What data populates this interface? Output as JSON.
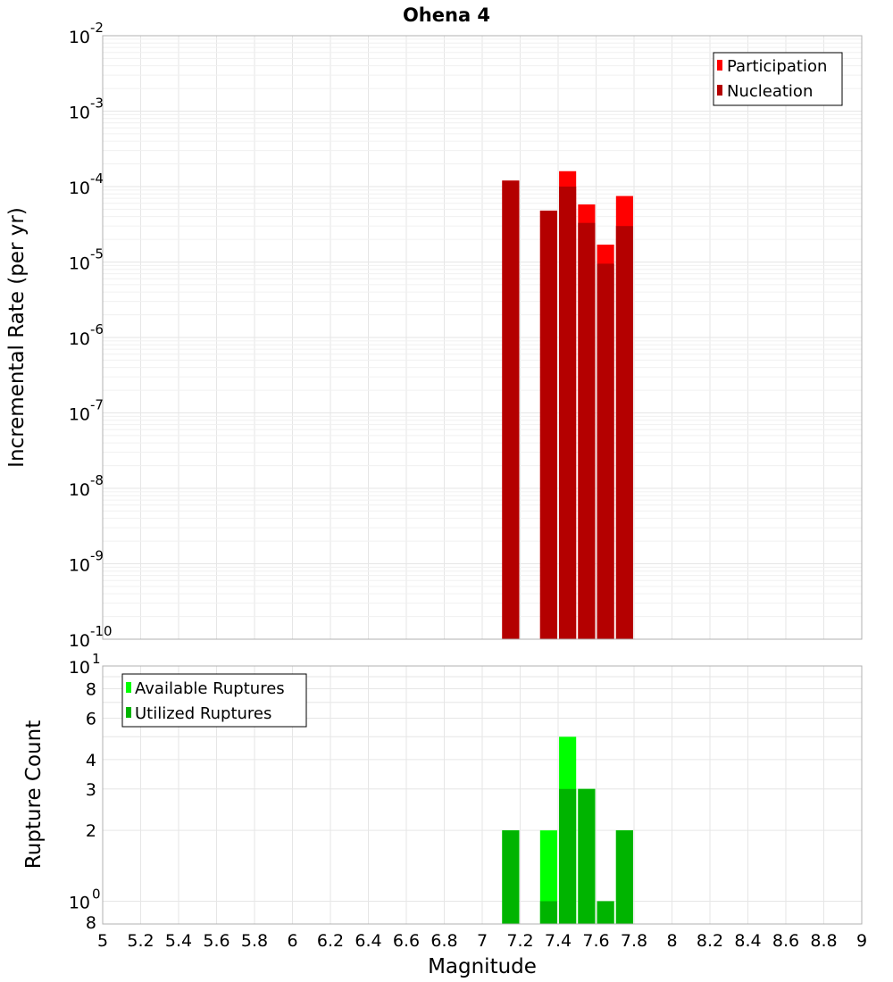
{
  "title": "Ohena 4",
  "x_axis": {
    "label": "Magnitude",
    "ticks": [
      "5",
      "5.2",
      "5.4",
      "5.6",
      "5.8",
      "6",
      "6.2",
      "6.4",
      "6.6",
      "6.8",
      "7",
      "7.2",
      "7.4",
      "7.6",
      "7.8",
      "8",
      "8.2",
      "8.4",
      "8.6",
      "8.8",
      "9"
    ]
  },
  "top_plot": {
    "ylabel": "Incremental Rate (per yr)",
    "decade_labels": [
      {
        "base": "10",
        "exp": "-10"
      },
      {
        "base": "10",
        "exp": "-9"
      },
      {
        "base": "10",
        "exp": "-8"
      },
      {
        "base": "10",
        "exp": "-7"
      },
      {
        "base": "10",
        "exp": "-6"
      },
      {
        "base": "10",
        "exp": "-5"
      },
      {
        "base": "10",
        "exp": "-4"
      },
      {
        "base": "10",
        "exp": "-3"
      },
      {
        "base": "10",
        "exp": "-2"
      }
    ],
    "legend": [
      "Participation",
      "Nucleation"
    ],
    "colors": {
      "participation": "#ff0000",
      "nucleation": "#b40000"
    }
  },
  "bottom_plot": {
    "ylabel": "Rupture Count",
    "tick_labels": [
      "8",
      "2",
      "3",
      "4",
      "6",
      "8"
    ],
    "decade_labels": [
      {
        "base": "10",
        "exp": "0"
      },
      {
        "base": "10",
        "exp": "1"
      }
    ],
    "legend": [
      "Available Ruptures",
      "Utilized Ruptures"
    ],
    "colors": {
      "available": "#00ff00",
      "utilized": "#00b400"
    }
  },
  "chart_data": [
    {
      "type": "bar",
      "title": "Ohena 4",
      "xlabel": "Magnitude",
      "ylabel": "Incremental Rate (per yr)",
      "y_scale": "log",
      "xlim": [
        5,
        9
      ],
      "ylim": [
        1e-10,
        0.01
      ],
      "x": [
        7.15,
        7.35,
        7.45,
        7.55,
        7.65,
        7.75
      ],
      "series": [
        {
          "name": "Participation",
          "values": [
            0.00012,
            4.8e-05,
            0.00016,
            5.8e-05,
            1.7e-05,
            7.5e-05
          ]
        },
        {
          "name": "Nucleation",
          "values": [
            0.00012,
            4.8e-05,
            0.0001,
            3.3e-05,
            9.5e-06,
            3e-05
          ]
        }
      ],
      "legend_position": "top-right",
      "grid": true
    },
    {
      "type": "bar",
      "xlabel": "Magnitude",
      "ylabel": "Rupture Count",
      "y_scale": "log",
      "xlim": [
        5,
        9
      ],
      "ylim": [
        0.8,
        10
      ],
      "x": [
        7.15,
        7.35,
        7.45,
        7.55,
        7.65,
        7.75
      ],
      "series": [
        {
          "name": "Available Ruptures",
          "values": [
            2,
            2,
            5,
            3,
            1,
            2
          ]
        },
        {
          "name": "Utilized Ruptures",
          "values": [
            2,
            1,
            3,
            3,
            1,
            2
          ]
        }
      ],
      "legend_position": "top-left",
      "grid": true
    }
  ]
}
